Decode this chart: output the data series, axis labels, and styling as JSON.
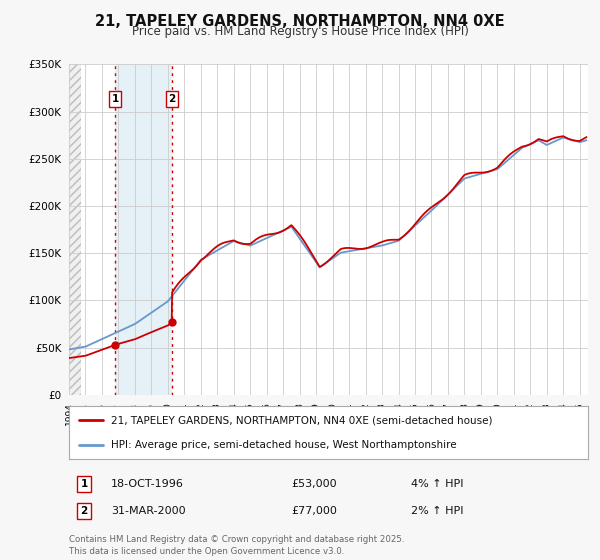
{
  "title": "21, TAPELEY GARDENS, NORTHAMPTON, NN4 0XE",
  "subtitle": "Price paid vs. HM Land Registry's House Price Index (HPI)",
  "ylim": [
    0,
    350000
  ],
  "xlim_start": 1994.0,
  "xlim_end": 2025.5,
  "background_color": "#f7f7f7",
  "plot_bg_color": "#ffffff",
  "grid_color": "#cccccc",
  "price_line_color": "#cc0000",
  "hpi_line_color": "#6699cc",
  "marker1_x": 1996.8,
  "marker1_y": 53000,
  "marker2_x": 2000.25,
  "marker2_y": 77000,
  "shade_x_start": 1996.8,
  "shade_x_end": 2000.25,
  "hatch_x_end": 1994.5,
  "legend_price_label": "21, TAPELEY GARDENS, NORTHAMPTON, NN4 0XE (semi-detached house)",
  "legend_hpi_label": "HPI: Average price, semi-detached house, West Northamptonshire",
  "note1_num": "1",
  "note1_date": "18-OCT-1996",
  "note1_price": "£53,000",
  "note1_hpi": "4% ↑ HPI",
  "note2_num": "2",
  "note2_date": "31-MAR-2000",
  "note2_price": "£77,000",
  "note2_hpi": "2% ↑ HPI",
  "footer": "Contains HM Land Registry data © Crown copyright and database right 2025.\nThis data is licensed under the Open Government Licence v3.0.",
  "yticks": [
    0,
    50000,
    100000,
    150000,
    200000,
    250000,
    300000,
    350000
  ],
  "ytick_labels": [
    "£0",
    "£50K",
    "£100K",
    "£150K",
    "£200K",
    "£250K",
    "£300K",
    "£350K"
  ],
  "xticks": [
    1994,
    1995,
    1996,
    1997,
    1998,
    1999,
    2000,
    2001,
    2002,
    2003,
    2004,
    2005,
    2006,
    2007,
    2008,
    2009,
    2010,
    2011,
    2012,
    2013,
    2014,
    2015,
    2016,
    2017,
    2018,
    2019,
    2020,
    2021,
    2022,
    2023,
    2024,
    2025
  ]
}
